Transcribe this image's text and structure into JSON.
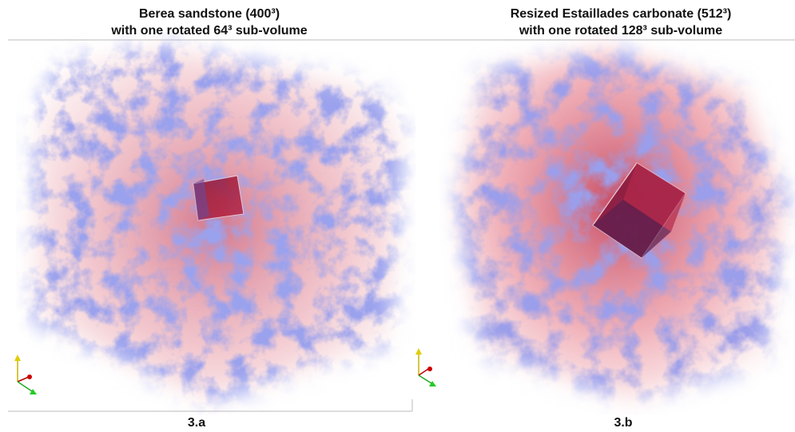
{
  "panels": [
    {
      "title": [
        "Berea sandstone (400³)",
        "with one rotated 64³ sub-volume"
      ],
      "label": "3.a"
    },
    {
      "title": [
        "Resized Estaillades carbonate (512³)",
        "with one rotated 128³ sub-volume"
      ],
      "label": "3.b"
    }
  ]
}
